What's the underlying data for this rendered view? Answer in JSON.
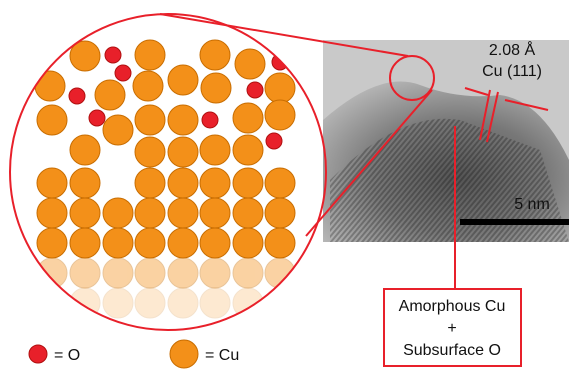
{
  "tem_image": {
    "spacing_label": "2.08 Å",
    "plane_label": "Cu (111)",
    "scale_label": "5 nm"
  },
  "callout": {
    "lines": [
      "Amorphous Cu",
      "+",
      "Subsurface O"
    ]
  },
  "legend": [
    {
      "label": "= O"
    },
    {
      "label": "= Cu"
    }
  ]
}
